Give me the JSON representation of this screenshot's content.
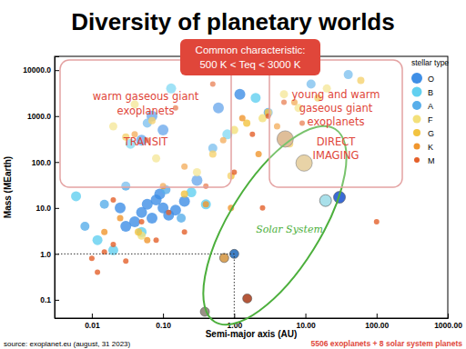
{
  "chart_data": {
    "type": "scatter",
    "title": "Diversity of planetary worlds",
    "x_label": "Semi-major axis (AU)",
    "y_label": "Mass (MEarth)",
    "log": true,
    "grid": false,
    "legend": "top-right",
    "legend_title": "stellar type",
    "xlim": [
      0.003,
      1000
    ],
    "ylim": [
      0.04,
      20000
    ],
    "xticks": [
      {
        "value": 0.01,
        "label": "0.01"
      },
      {
        "value": 0.1,
        "label": "0.10"
      },
      {
        "value": 1,
        "label": "1.00"
      },
      {
        "value": 10,
        "label": "10.00"
      },
      {
        "value": 100,
        "label": "100.00"
      },
      {
        "value": 1000,
        "label": "1000.00"
      }
    ],
    "yticks": [
      0.1,
      {
        "value": 1,
        "label": "1.0"
      },
      {
        "value": 10,
        "label": "10.0"
      },
      {
        "value": 100,
        "label": "100.0"
      },
      {
        "value": 1000,
        "label": "1000.0"
      },
      {
        "value": 10000,
        "label": "10000.0"
      }
    ],
    "reference_lines": {
      "x": 1,
      "y": 1
    },
    "annotations": [
      {
        "text": [
          "Common characteristic:",
          "500 K < Teq < 3000 K"
        ]
      },
      {
        "text": [
          "warm gaseous giant",
          "exoplanets",
          "TRANSIT"
        ]
      },
      {
        "text": [
          "young and warm",
          "gaseous giant",
          "exoplanets",
          "DIRECT",
          "IMAGING"
        ]
      }
    ],
    "source": "source: exoplanet.eu (august, 31 2023)",
    "caption": "5506 exoplanets + 8 solar system planets",
    "series": [
      {
        "name": "O",
        "color": "#3f8fe6",
        "x": [
          0.05,
          0.06,
          0.07,
          0.08,
          0.1,
          0.12,
          0.04,
          0.09,
          0.15,
          0.2,
          0.03,
          0.05,
          0.07,
          0.1,
          0.3,
          0.025,
          0.6,
          1.2
        ],
        "values": [
          8,
          12,
          6,
          15,
          10,
          7,
          5,
          20,
          9,
          14,
          4,
          300,
          1000,
          500,
          40,
          10,
          1500,
          3000
        ]
      },
      {
        "name": "B",
        "color": "#62d0f0",
        "x": [
          0.006,
          0.012,
          0.02,
          0.035,
          0.25,
          0.4,
          0.8,
          2,
          0.05,
          0.13
        ],
        "values": [
          18,
          2,
          1.2,
          250,
          22,
          12,
          400,
          2500,
          3,
          4000
        ]
      },
      {
        "name": "A",
        "color": "#58aeea",
        "x": [
          0.008,
          0.015,
          0.03,
          0.06,
          0.11,
          0.18,
          0.5,
          3,
          12,
          40
        ],
        "values": [
          4,
          12,
          30,
          700,
          25,
          6,
          200,
          1200,
          5000,
          8000
        ]
      },
      {
        "name": "F",
        "color": "#f3e07a",
        "x": [
          0.02,
          0.04,
          0.05,
          0.08,
          0.3,
          1,
          2.5,
          5,
          8,
          20
        ],
        "values": [
          600,
          1800,
          2.5,
          120,
          60,
          500,
          900,
          3000,
          1500,
          4000
        ]
      },
      {
        "name": "G",
        "color": "#f2c340",
        "x": [
          0.03,
          0.045,
          0.07,
          0.2,
          0.5,
          0.9,
          1.5,
          3,
          6,
          15,
          60
        ],
        "values": [
          350,
          3,
          800,
          20,
          150,
          50,
          700,
          1200,
          250,
          2500,
          6000
        ]
      },
      {
        "name": "K",
        "color": "#f0962e",
        "x": [
          0.015,
          0.025,
          0.04,
          0.06,
          0.1,
          0.2,
          0.4,
          0.7,
          1.3,
          2.2,
          4,
          7,
          0.9
        ],
        "values": [
          3,
          6,
          400,
          2,
          30,
          80,
          12,
          300,
          900,
          150,
          600,
          2000,
          10
        ]
      },
      {
        "name": "M",
        "color": "#e4602a",
        "x": [
          0.01,
          0.012,
          0.015,
          0.02,
          0.03,
          0.05,
          0.08,
          0.12,
          0.2,
          0.4,
          1,
          1.8,
          3,
          0.02,
          0.06,
          0.15,
          0.5,
          2.5,
          5,
          9,
          100
        ],
        "values": [
          0.8,
          0.4,
          1.1,
          1.6,
          0.7,
          5,
          2,
          8,
          3,
          30,
          60,
          400,
          1000,
          15,
          300,
          1500,
          5000,
          10,
          2000,
          700,
          5
        ]
      },
      {
        "name": "Solar System",
        "marker": "planet",
        "color": "#4caf3c",
        "colors": [
          "#9a8f86",
          "#d9a35a",
          "#3f7fc4",
          "#b5573a",
          "#d4a877",
          "#e0c48a",
          "#a9e0ea",
          "#3a6bd6"
        ],
        "x": [
          0.387,
          0.723,
          1,
          1.524,
          5.2,
          9.58,
          19.2,
          30.1
        ],
        "values": [
          0.055,
          0.815,
          1,
          0.107,
          317.8,
          95.2,
          14.5,
          17.1
        ]
      }
    ]
  }
}
